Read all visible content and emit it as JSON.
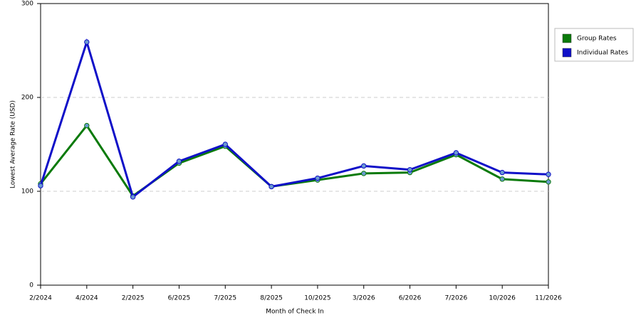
{
  "chart_data": {
    "type": "line",
    "x_label": "Month of Check In",
    "y_label": "Lowest Average Rate (USD)",
    "categories": [
      "2/2024",
      "4/2024",
      "2/2025",
      "6/2025",
      "7/2025",
      "8/2025",
      "10/2025",
      "3/2026",
      "6/2026",
      "7/2026",
      "10/2026",
      "11/2026"
    ],
    "series": [
      {
        "name": "Group Rates",
        "color": "#0a7a0a",
        "values": [
          108,
          170,
          95,
          130,
          148,
          105,
          112,
          119,
          120,
          139,
          113,
          110
        ]
      },
      {
        "name": "Individual Rates",
        "color": "#1010c8",
        "values": [
          106,
          259,
          94,
          132,
          150,
          105,
          114,
          127,
          123,
          141,
          120,
          118
        ]
      }
    ],
    "ylim": [
      0,
      300
    ],
    "yticks": [
      0,
      100,
      200,
      300
    ],
    "grid": true,
    "legend": "right"
  }
}
